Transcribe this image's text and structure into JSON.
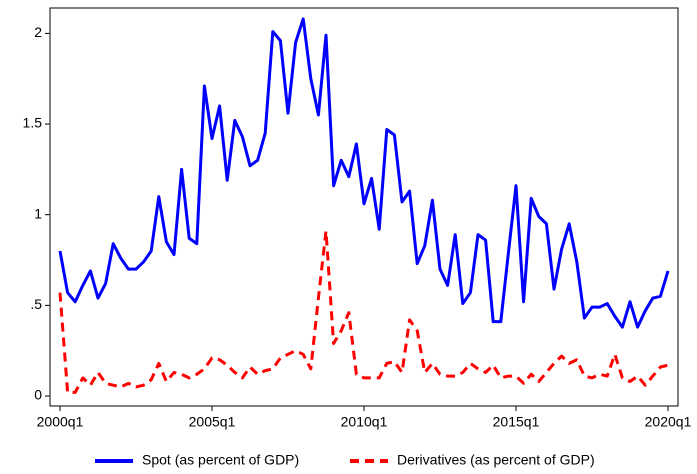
{
  "chart_data": {
    "type": "line",
    "categories": [
      "2000q1",
      null,
      null,
      null,
      null,
      null,
      null,
      null,
      null,
      null,
      null,
      null,
      null,
      null,
      null,
      null,
      null,
      null,
      null,
      null,
      "2005q1",
      null,
      null,
      null,
      null,
      null,
      null,
      null,
      null,
      null,
      null,
      null,
      null,
      null,
      null,
      null,
      null,
      null,
      null,
      null,
      "2010q1",
      null,
      null,
      null,
      null,
      null,
      null,
      null,
      null,
      null,
      null,
      null,
      null,
      null,
      null,
      null,
      null,
      null,
      null,
      null,
      "2015q1",
      null,
      null,
      null,
      null,
      null,
      null,
      null,
      null,
      null,
      null,
      null,
      null,
      null,
      null,
      null,
      null,
      null,
      null,
      null,
      "2020q1"
    ],
    "series": [
      {
        "name": "Spot (as percent of GDP)",
        "color": "#0000ff",
        "line_style": "solid",
        "values": [
          0.8,
          0.57,
          0.52,
          0.61,
          0.69,
          0.54,
          0.62,
          0.84,
          0.76,
          0.7,
          0.7,
          0.74,
          0.8,
          1.1,
          0.85,
          0.78,
          1.25,
          0.87,
          0.84,
          1.71,
          1.42,
          1.6,
          1.19,
          1.52,
          1.43,
          1.27,
          1.3,
          1.45,
          2.01,
          1.96,
          1.56,
          1.95,
          2.08,
          1.75,
          1.55,
          1.99,
          1.16,
          1.3,
          1.21,
          1.39,
          1.06,
          1.2,
          0.92,
          1.47,
          1.44,
          1.07,
          1.13,
          0.73,
          0.83,
          1.08,
          0.7,
          0.61,
          0.89,
          0.51,
          0.57,
          0.89,
          0.86,
          0.41,
          0.41,
          0.79,
          1.16,
          0.52,
          1.09,
          0.99,
          0.95,
          0.59,
          0.81,
          0.95,
          0.74,
          0.43,
          0.49,
          0.49,
          0.51,
          0.44,
          0.38,
          0.52,
          0.38,
          0.47,
          0.54,
          0.55,
          0.69
        ]
      },
      {
        "name": "Derivatives (as percent of GDP)",
        "color": "#ff0000",
        "line_style": "dashed",
        "values": [
          0.57,
          0.02,
          0.02,
          0.1,
          0.06,
          0.13,
          0.07,
          0.06,
          0.05,
          0.07,
          0.05,
          0.06,
          0.09,
          0.18,
          0.08,
          0.13,
          0.12,
          0.1,
          0.12,
          0.15,
          0.21,
          0.2,
          0.17,
          0.13,
          0.1,
          0.16,
          0.12,
          0.14,
          0.15,
          0.21,
          0.23,
          0.25,
          0.23,
          0.15,
          0.54,
          0.91,
          0.29,
          0.36,
          0.46,
          0.12,
          0.1,
          0.1,
          0.1,
          0.18,
          0.19,
          0.13,
          0.42,
          0.36,
          0.13,
          0.18,
          0.12,
          0.11,
          0.11,
          0.13,
          0.18,
          0.15,
          0.13,
          0.17,
          0.1,
          0.11,
          0.11,
          0.07,
          0.12,
          0.08,
          0.13,
          0.18,
          0.22,
          0.18,
          0.2,
          0.11,
          0.1,
          0.12,
          0.11,
          0.23,
          0.1,
          0.08,
          0.11,
          0.06,
          0.11,
          0.16,
          0.17
        ]
      }
    ],
    "ylim": [
      -0.055,
      2.14
    ],
    "yticks": [
      0,
      {
        "value": 0.5,
        "label": ".5"
      },
      1,
      1.5,
      2
    ],
    "legend": "bottom"
  }
}
